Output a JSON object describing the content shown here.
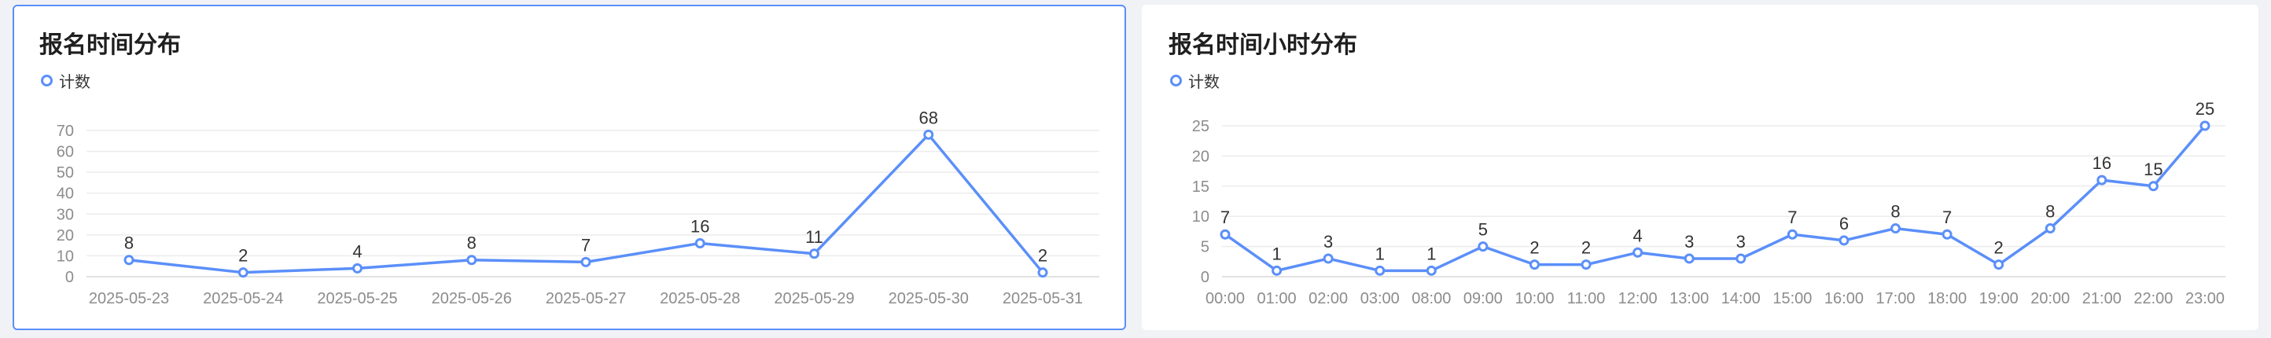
{
  "chart_data": [
    {
      "type": "line",
      "title": "报名时间分布",
      "legend": "计数",
      "legend_position": "top-left",
      "categories": [
        "2025-05-23",
        "2025-05-24",
        "2025-05-25",
        "2025-05-26",
        "2025-05-27",
        "2025-05-28",
        "2025-05-29",
        "2025-05-30",
        "2025-05-31"
      ],
      "series": [
        {
          "name": "计数",
          "values": [
            8,
            2,
            4,
            8,
            7,
            16,
            11,
            68,
            2
          ]
        }
      ],
      "yticks": [
        0,
        10,
        20,
        30,
        40,
        50,
        60,
        70
      ],
      "ylim": [
        0,
        70
      ],
      "grid": true,
      "color": "#5b8ff9"
    },
    {
      "type": "line",
      "title": "报名时间小时分布",
      "legend": "计数",
      "legend_position": "top-left",
      "categories": [
        "00:00",
        "01:00",
        "02:00",
        "03:00",
        "08:00",
        "09:00",
        "10:00",
        "11:00",
        "12:00",
        "13:00",
        "14:00",
        "15:00",
        "16:00",
        "17:00",
        "18:00",
        "19:00",
        "20:00",
        "21:00",
        "22:00",
        "23:00"
      ],
      "series": [
        {
          "name": "计数",
          "values": [
            7,
            1,
            3,
            1,
            1,
            5,
            2,
            2,
            4,
            3,
            3,
            7,
            6,
            8,
            7,
            2,
            8,
            16,
            15,
            25
          ]
        }
      ],
      "yticks": [
        0,
        5,
        10,
        15,
        20,
        25
      ],
      "ylim": [
        0,
        25
      ],
      "grid": true,
      "color": "#5b8ff9"
    }
  ]
}
